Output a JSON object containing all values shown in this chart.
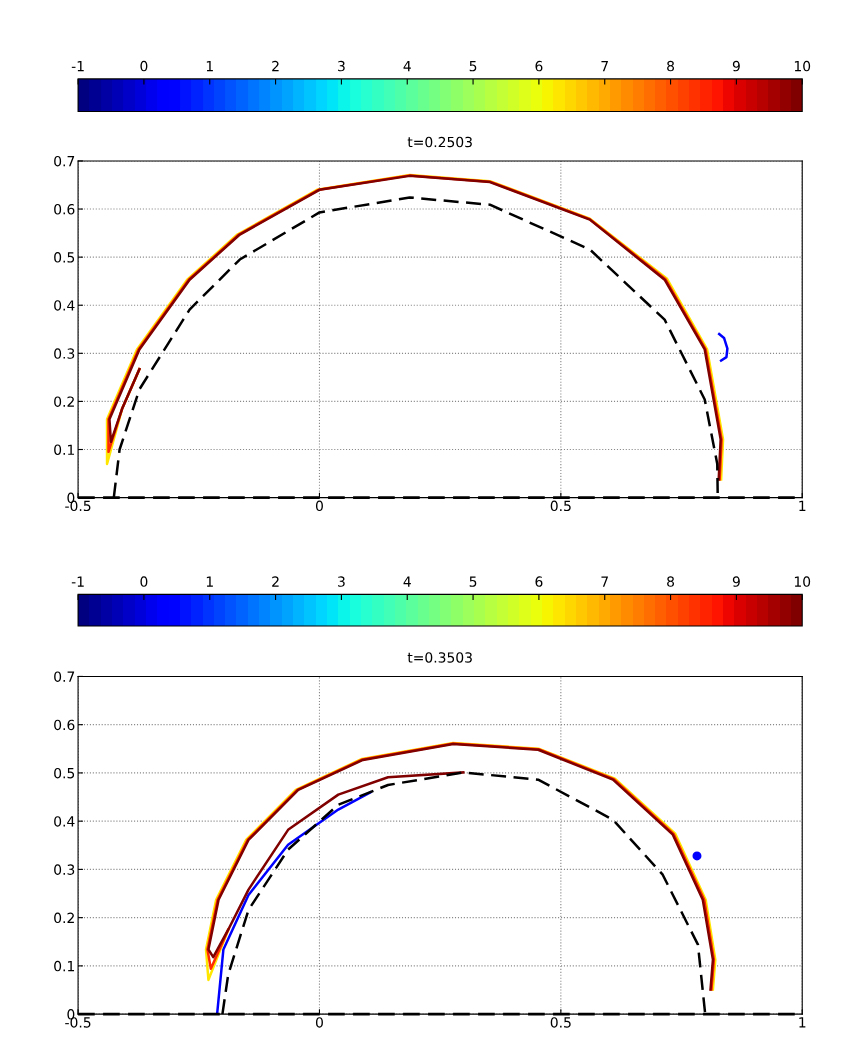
{
  "chart_data": [
    {
      "type": "line",
      "title": "t=0.2503",
      "xlim": [
        -0.5,
        1
      ],
      "ylim": [
        0,
        0.7
      ],
      "xticks": [
        -0.5,
        0,
        0.5,
        1
      ],
      "yticks": [
        0,
        0.1,
        0.2,
        0.3,
        0.4,
        0.5,
        0.6,
        0.7
      ],
      "grid": true,
      "clim": [
        -1,
        10
      ],
      "cticks": [
        -1,
        0,
        1,
        2,
        3,
        4,
        5,
        6,
        7,
        8,
        9,
        10
      ],
      "ref_lines": [
        {
          "axis": "y",
          "value": 0,
          "color": "#000000",
          "line_style": "dashed"
        }
      ],
      "series": [
        {
          "type": "line",
          "color": "#ffe600",
          "x": [
            -0.373,
            -0.409,
            -0.44,
            -0.44,
            -0.378,
            -0.274,
            -0.17,
            -0.005,
            0.187,
            0.353,
            0.56,
            0.72,
            0.803,
            0.836,
            0.832
          ],
          "values": [
            0.267,
            0.184,
            0.07,
            0.163,
            0.308,
            0.453,
            0.547,
            0.64,
            0.671,
            0.658,
            0.58,
            0.455,
            0.308,
            0.121,
            0.038
          ]
        },
        {
          "type": "line",
          "color": "#ff2a00",
          "x": [
            -0.373,
            -0.409,
            -0.437,
            -0.437,
            -0.375,
            -0.271,
            -0.167,
            -0.002,
            0.187,
            0.353,
            0.56,
            0.717,
            0.8,
            0.833,
            0.829
          ],
          "values": [
            0.267,
            0.184,
            0.095,
            0.163,
            0.308,
            0.453,
            0.547,
            0.64,
            0.67,
            0.657,
            0.579,
            0.454,
            0.308,
            0.121,
            0.038
          ]
        },
        {
          "type": "line",
          "color": "#800000",
          "x": [
            -0.373,
            -0.409,
            -0.432,
            -0.435,
            -0.373,
            -0.269,
            -0.165,
            0.0,
            0.187,
            0.353,
            0.56,
            0.715,
            0.798,
            0.831,
            0.827
          ],
          "values": [
            0.267,
            0.184,
            0.116,
            0.163,
            0.308,
            0.453,
            0.547,
            0.64,
            0.669,
            0.656,
            0.578,
            0.453,
            0.308,
            0.121,
            0.038
          ]
        },
        {
          "type": "line",
          "color": "#000000",
          "line_style": "dashed",
          "x": [
            -0.426,
            -0.414,
            -0.373,
            -0.269,
            -0.165,
            0.0,
            0.187,
            0.353,
            0.56,
            0.715,
            0.798,
            0.824,
            0.825
          ],
          "values": [
            0,
            0.1,
            0.225,
            0.391,
            0.495,
            0.593,
            0.624,
            0.609,
            0.516,
            0.37,
            0.204,
            0.07,
            0
          ]
        },
        {
          "color": "#0000ff",
          "x": [
            0.828,
            0.838,
            0.845,
            0.843,
            0.832
          ],
          "values": [
            0.34,
            0.332,
            0.31,
            0.292,
            0.285
          ]
        }
      ]
    },
    {
      "type": "line",
      "title": "t=0.3503",
      "xlim": [
        -0.5,
        1
      ],
      "ylim": [
        0,
        0.7
      ],
      "xticks": [
        -0.5,
        0,
        0.5,
        1
      ],
      "yticks": [
        0,
        0.1,
        0.2,
        0.3,
        0.4,
        0.5,
        0.6,
        0.7
      ],
      "grid": true,
      "clim": [
        -1,
        10
      ],
      "cticks": [
        -1,
        0,
        1,
        2,
        3,
        4,
        5,
        6,
        7,
        8,
        9,
        10
      ],
      "ref_lines": [
        {
          "axis": "y",
          "value": 0,
          "color": "#000000",
          "line_style": "dashed"
        }
      ],
      "series": [
        {
          "color": "#0000ff",
          "x": [
            -0.212,
            -0.199,
            -0.147,
            -0.065,
            0.039,
            0.106
          ],
          "values": [
            0,
            0.134,
            0.247,
            0.351,
            0.424,
            0.46
          ]
        },
        {
          "type": "line",
          "color": "#ffe600",
          "x": [
            -0.189,
            -0.23,
            -0.235,
            -0.214,
            -0.152,
            -0.049,
            0.088,
            0.277,
            0.455,
            0.612,
            0.737,
            0.8,
            0.82,
            0.815
          ],
          "values": [
            0.175,
            0.071,
            0.134,
            0.237,
            0.361,
            0.465,
            0.529,
            0.562,
            0.55,
            0.488,
            0.374,
            0.237,
            0.113,
            0.051
          ]
        },
        {
          "type": "line",
          "color": "#ff2a00",
          "x": [
            -0.189,
            -0.225,
            -0.232,
            -0.211,
            -0.149,
            -0.046,
            0.089,
            0.277,
            0.454,
            0.61,
            0.734,
            0.797,
            0.817,
            0.812
          ],
          "values": [
            0.175,
            0.094,
            0.134,
            0.237,
            0.361,
            0.465,
            0.528,
            0.561,
            0.549,
            0.487,
            0.373,
            0.237,
            0.113,
            0.051
          ]
        },
        {
          "type": "line",
          "color": "#800000",
          "x": [
            0.298,
            0.142,
            0.039,
            -0.065,
            -0.147,
            -0.189,
            -0.22,
            -0.23,
            -0.209,
            -0.147,
            -0.044,
            0.09,
            0.277,
            0.453,
            0.608,
            0.732,
            0.794,
            0.815,
            0.81
          ],
          "values": [
            0.501,
            0.491,
            0.455,
            0.382,
            0.258,
            0.175,
            0.118,
            0.134,
            0.237,
            0.361,
            0.465,
            0.527,
            0.56,
            0.548,
            0.486,
            0.372,
            0.237,
            0.113,
            0.051
          ]
        },
        {
          "type": "line",
          "color": "#000000",
          "line_style": "dashed",
          "x": [
            -0.201,
            -0.189,
            -0.147,
            -0.065,
            0.039,
            0.142,
            0.298,
            0.453,
            0.608,
            0.711,
            0.784,
            0.799
          ],
          "values": [
            0,
            0.082,
            0.216,
            0.341,
            0.434,
            0.475,
            0.501,
            0.486,
            0.403,
            0.289,
            0.144,
            0
          ]
        },
        {
          "type": "scatter",
          "color": "#0000ff",
          "marker": "circle",
          "x": [
            0.782
          ],
          "values": [
            0.328
          ]
        }
      ]
    }
  ]
}
